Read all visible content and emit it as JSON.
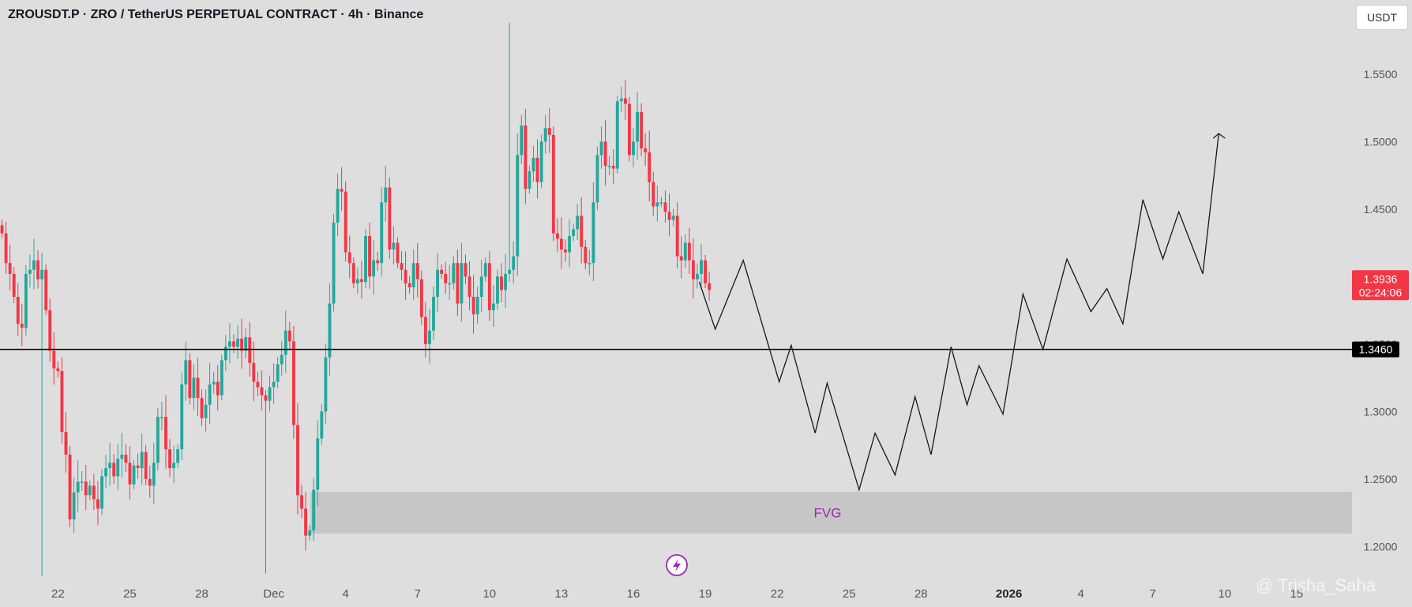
{
  "header": {
    "title": "ZROUSDT.P · ZRO / TetherUS PERPETUAL CONTRACT · 4h · Binance"
  },
  "currency_button": "USDT",
  "watermark": "@ Trisha_Saha",
  "colors": {
    "up": "#26a69a",
    "down": "#f23645",
    "background": "#dedede",
    "fvg": "#c6c6c6",
    "fvg_text": "#9c27b0",
    "projection": "#131722"
  },
  "chart_data": {
    "type": "candlestick",
    "title": "ZROUSDT.P · ZRO / TetherUS PERPETUAL CONTRACT · 4h · Binance",
    "timeframe": "4h",
    "ylim": [
      1.175,
      1.595
    ],
    "y_ticks": [
      "1.2000",
      "1.2500",
      "1.3000",
      "1.3500",
      "1.4000",
      "1.4500",
      "1.5000",
      "1.5500"
    ],
    "x_ticks": [
      {
        "label": "19",
        "bar": -4
      },
      {
        "label": "22",
        "bar": 14
      },
      {
        "label": "25",
        "bar": 32
      },
      {
        "label": "28",
        "bar": 50
      },
      {
        "label": "Dec",
        "bar": 68
      },
      {
        "label": "4",
        "bar": 86
      },
      {
        "label": "7",
        "bar": 104
      },
      {
        "label": "10",
        "bar": 122
      },
      {
        "label": "13",
        "bar": 140
      },
      {
        "label": "16",
        "bar": 158
      },
      {
        "label": "19",
        "bar": 176
      },
      {
        "label": "22",
        "bar": 194
      },
      {
        "label": "25",
        "bar": 212
      },
      {
        "label": "28",
        "bar": 230
      },
      {
        "label": "2026",
        "bar": 252,
        "bold": true
      },
      {
        "label": "4",
        "bar": 270
      },
      {
        "label": "7",
        "bar": 288
      },
      {
        "label": "10",
        "bar": 306
      },
      {
        "label": "15",
        "bar": 324
      }
    ],
    "candle_closes": [
      1.432,
      1.41,
      1.402,
      1.385,
      1.365,
      1.362,
      1.402,
      1.405,
      1.412,
      1.398,
      1.405,
      1.375,
      1.345,
      1.332,
      1.33,
      1.285,
      1.268,
      1.22,
      1.24,
      1.248,
      1.248,
      1.238,
      1.245,
      1.235,
      1.228,
      1.252,
      1.258,
      1.262,
      1.252,
      1.265,
      1.268,
      1.262,
      1.246,
      1.26,
      1.258,
      1.27,
      1.25,
      1.245,
      1.262,
      1.296,
      1.296,
      1.272,
      1.258,
      1.262,
      1.272,
      1.32,
      1.338,
      1.31,
      1.325,
      1.31,
      1.295,
      1.305,
      1.32,
      1.322,
      1.312,
      1.338,
      1.348,
      1.352,
      1.348,
      1.354,
      1.345,
      1.355,
      1.336,
      1.322,
      1.318,
      1.312,
      1.308,
      1.318,
      1.322,
      1.335,
      1.342,
      1.36,
      1.352,
      1.29,
      1.238,
      1.228,
      1.208,
      1.212,
      1.242,
      1.28,
      1.3,
      1.34,
      1.38,
      1.44,
      1.465,
      1.463,
      1.418,
      1.41,
      1.395,
      1.398,
      1.396,
      1.43,
      1.4,
      1.412,
      1.41,
      1.455,
      1.466,
      1.42,
      1.425,
      1.41,
      1.405,
      1.395,
      1.392,
      1.41,
      1.398,
      1.37,
      1.35,
      1.36,
      1.385,
      1.405,
      1.402,
      1.395,
      1.395,
      1.41,
      1.38,
      1.41,
      1.4,
      1.385,
      1.372,
      1.385,
      1.4,
      1.41,
      1.375,
      1.38,
      1.4,
      1.39,
      1.402,
      1.405,
      1.415,
      1.49,
      1.512,
      1.465,
      1.478,
      1.488,
      1.47,
      1.5,
      1.51,
      1.505,
      1.432,
      1.428,
      1.42,
      1.418,
      1.43,
      1.435,
      1.445,
      1.422,
      1.41,
      1.41,
      1.455,
      1.49,
      1.5,
      1.482,
      1.482,
      1.48,
      1.53,
      1.532,
      1.528,
      1.49,
      1.5,
      1.522,
      1.495,
      1.492,
      1.47,
      1.452,
      1.455,
      1.455,
      1.448,
      1.442,
      1.445,
      1.415,
      1.412,
      1.425,
      1.412,
      1.398,
      1.402,
      1.412,
      1.395,
      1.39
    ],
    "current_price": {
      "value": 1.3936,
      "label": "1.3936",
      "countdown": "02:24:06"
    },
    "horizontal_line": {
      "value": 1.346,
      "label": "1.3460"
    },
    "fvg_zone": {
      "label": "FVG",
      "top": 1.2405,
      "bottom": 1.2095
    },
    "projection_path": [
      [
        175,
        1.396
      ],
      [
        179,
        1.361
      ],
      [
        186,
        1.412
      ],
      [
        195,
        1.322
      ],
      [
        198,
        1.349
      ],
      [
        204,
        1.284
      ],
      [
        207,
        1.321
      ],
      [
        215,
        1.242
      ],
      [
        219,
        1.284
      ],
      [
        224,
        1.253
      ],
      [
        229,
        1.311
      ],
      [
        233,
        1.268
      ],
      [
        238,
        1.348
      ],
      [
        242,
        1.305
      ],
      [
        245,
        1.334
      ],
      [
        251,
        1.298
      ],
      [
        256,
        1.387
      ],
      [
        261,
        1.346
      ],
      [
        267,
        1.413
      ],
      [
        273,
        1.374
      ],
      [
        277,
        1.391
      ],
      [
        281,
        1.365
      ],
      [
        286,
        1.457
      ],
      [
        291,
        1.413
      ],
      [
        295,
        1.448
      ],
      [
        301,
        1.402
      ],
      [
        305,
        1.506
      ]
    ]
  },
  "lightning_icon": "lightning-icon"
}
